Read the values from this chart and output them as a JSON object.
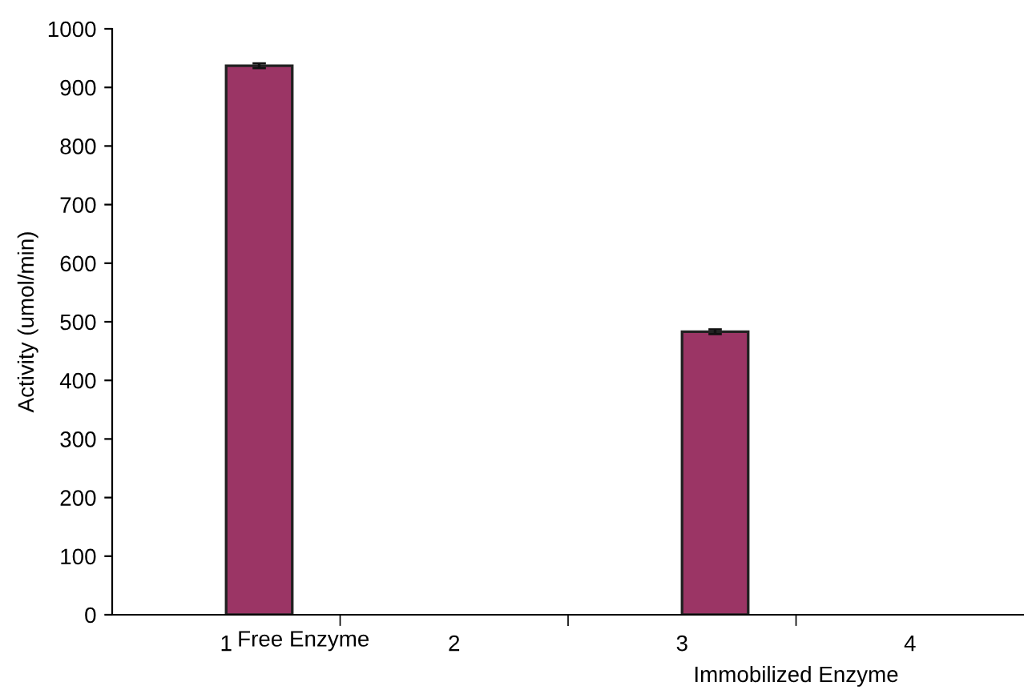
{
  "chart_data": {
    "type": "bar",
    "ylabel": "Activity (umol/min)",
    "categories": [
      "1",
      "2",
      "3",
      "4"
    ],
    "values": [
      937,
      null,
      483,
      null
    ],
    "errors": [
      4,
      null,
      4,
      null
    ],
    "color": "#9b3565",
    "ylim": [
      0,
      1000
    ],
    "yticks": [
      0,
      100,
      200,
      300,
      400,
      500,
      600,
      700,
      800,
      900,
      1000
    ],
    "grid": false,
    "legend": false,
    "annotations": [
      "Free Enzyme",
      "Immobilized Enzyme"
    ]
  }
}
